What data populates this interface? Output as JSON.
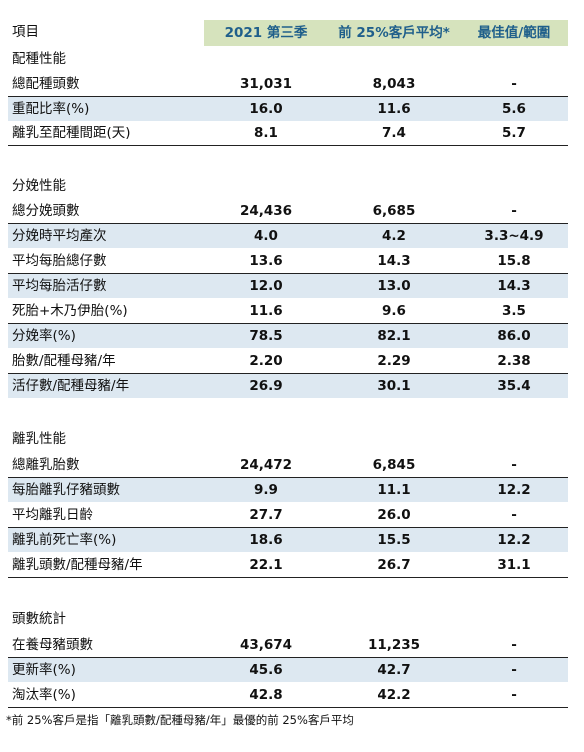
{
  "header": {
    "col0": "項目",
    "col1": "2021 第三季",
    "col2": "前 25%客戶平均*",
    "col3": "最佳值/範圍"
  },
  "sections": [
    {
      "title": "配種性能",
      "rows": [
        {
          "label": "總配種頭數",
          "v1": "31,031",
          "v2": "8,043",
          "v3": "-"
        },
        {
          "label": "重配比率(%)",
          "v1": "16.0",
          "v2": "11.6",
          "v3": "5.6"
        },
        {
          "label": "離乳至配種間距(天)",
          "v1": "8.1",
          "v2": "7.4",
          "v3": "5.7"
        }
      ]
    },
    {
      "title": "分娩性能",
      "rows": [
        {
          "label": "總分娩頭數",
          "v1": "24,436",
          "v2": "6,685",
          "v3": "-"
        },
        {
          "label": "分娩時平均產次",
          "v1": "4.0",
          "v2": "4.2",
          "v3": "3.3~4.9"
        },
        {
          "label": "平均每胎總仔數",
          "v1": "13.6",
          "v2": "14.3",
          "v3": "15.8"
        },
        {
          "label": "平均每胎活仔數",
          "v1": "12.0",
          "v2": "13.0",
          "v3": "14.3"
        },
        {
          "label": "死胎+木乃伊胎(%)",
          "v1": "11.6",
          "v2": "9.6",
          "v3": "3.5"
        },
        {
          "label": "分娩率(%)",
          "v1": "78.5",
          "v2": "82.1",
          "v3": "86.0"
        },
        {
          "label": "胎數/配種母豬/年",
          "v1": "2.20",
          "v2": "2.29",
          "v3": "2.38"
        },
        {
          "label": "活仔數/配種母豬/年",
          "v1": "26.9",
          "v2": "30.1",
          "v3": "35.4"
        }
      ]
    },
    {
      "title": "離乳性能",
      "rows": [
        {
          "label": "總離乳胎數",
          "v1": "24,472",
          "v2": "6,845",
          "v3": "-"
        },
        {
          "label": "每胎離乳仔豬頭數",
          "v1": "9.9",
          "v2": "11.1",
          "v3": "12.2"
        },
        {
          "label": "平均離乳日齡",
          "v1": "27.7",
          "v2": "26.0",
          "v3": "-"
        },
        {
          "label": "離乳前死亡率(%)",
          "v1": "18.6",
          "v2": "15.5",
          "v3": "12.2"
        },
        {
          "label": "離乳頭數/配種母豬/年",
          "v1": "22.1",
          "v2": "26.7",
          "v3": "31.1"
        }
      ]
    },
    {
      "title": "頭數統計",
      "rows": [
        {
          "label": "在養母豬頭數",
          "v1": "43,674",
          "v2": "11,235",
          "v3": "-"
        },
        {
          "label": "更新率(%)",
          "v1": "45.6",
          "v2": "42.7",
          "v3": "-"
        },
        {
          "label": "淘汰率(%)",
          "v1": "42.8",
          "v2": "42.2",
          "v3": "-"
        }
      ]
    }
  ],
  "footnote": "*前 25%客戶是指「離乳頭數/配種母豬/年」最優的前 25%客戶平均",
  "colors": {
    "header_bg": "#d6e3bd",
    "header_text": "#1f5f8b",
    "stripe": "#dde8f1"
  }
}
